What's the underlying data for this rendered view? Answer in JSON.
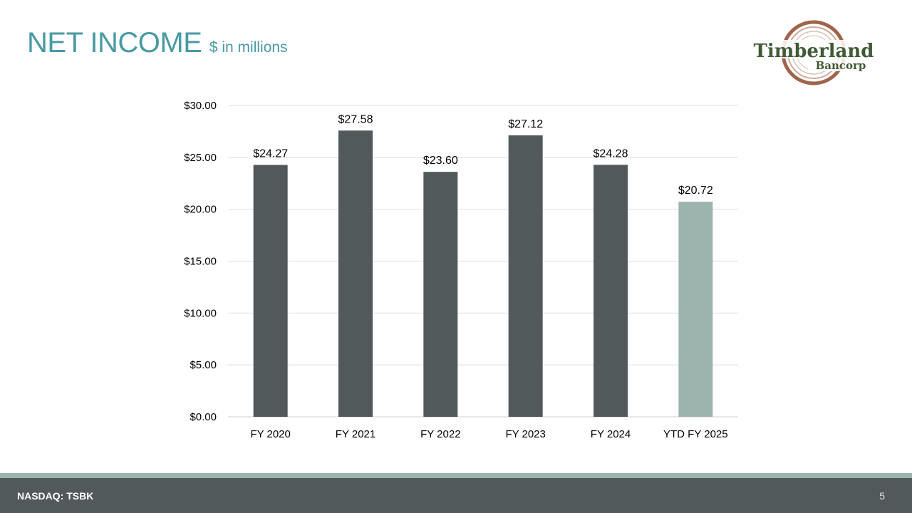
{
  "header": {
    "title": "NET INCOME",
    "subtitle": "$ in millions"
  },
  "logo": {
    "name": "Timberland",
    "sub": "Bancorp"
  },
  "colors": {
    "title": "#4a9aa3",
    "bar_primary": "#51595b",
    "bar_highlight": "#9db3ad",
    "footer": "#51595b",
    "footer_strip": "#9db3ad",
    "logo_ring": "#a0644a",
    "logo_text": "#3f5a34"
  },
  "chart_data": {
    "type": "bar",
    "title": "",
    "xlabel": "",
    "ylabel": "",
    "categories": [
      "FY 2020",
      "FY 2021",
      "FY 2022",
      "FY 2023",
      "FY 2024",
      "YTD FY 2025"
    ],
    "values": [
      24.27,
      27.58,
      23.6,
      27.12,
      24.28,
      20.72
    ],
    "data_labels": [
      "$24.27",
      "$27.58",
      "$23.60",
      "$27.12",
      "$24.28",
      "$20.72"
    ],
    "highlight_index": 5,
    "ylim": [
      0,
      30
    ],
    "yticks": [
      0,
      5,
      10,
      15,
      20,
      25,
      30
    ],
    "ytick_labels": [
      "$0.00",
      "$5.00",
      "$10.00",
      "$15.00",
      "$20.00",
      "$25.00",
      "$30.00"
    ],
    "grid": true,
    "legend": "none"
  },
  "footer": {
    "ticker": "NASDAQ: TSBK",
    "page_number": "5"
  }
}
